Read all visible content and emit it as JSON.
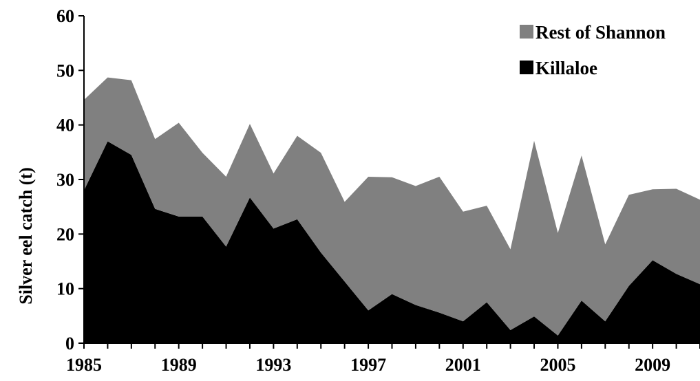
{
  "chart_data": {
    "type": "area",
    "stacked": true,
    "title": "",
    "xlabel": "",
    "ylabel": "Silver eel catch (t)",
    "x": [
      1985,
      1986,
      1987,
      1988,
      1989,
      1990,
      1991,
      1992,
      1993,
      1994,
      1995,
      1996,
      1997,
      1998,
      1999,
      2000,
      2001,
      2002,
      2003,
      2004,
      2005,
      2006,
      2007,
      2008,
      2009,
      2010,
      2011
    ],
    "x_tick_labels": [
      "1985",
      "1989",
      "1993",
      "1997",
      "2001",
      "2005",
      "2009"
    ],
    "y_tick_labels": [
      "0",
      "10",
      "20",
      "30",
      "40",
      "50",
      "60"
    ],
    "xlim": [
      1985,
      2011
    ],
    "ylim": [
      0,
      60
    ],
    "grid": false,
    "legend_position": "top-right",
    "series": [
      {
        "name": "Killaloe",
        "color": "#000000",
        "values": [
          28.0,
          37.0,
          34.5,
          24.6,
          23.2,
          23.2,
          17.7,
          26.7,
          21.0,
          22.7,
          16.6,
          11.3,
          6.0,
          9.0,
          7.0,
          5.6,
          4.0,
          7.5,
          2.4,
          4.9,
          1.4,
          7.8,
          4.0,
          10.5,
          15.2,
          12.7,
          10.8
        ]
      },
      {
        "name": "Rest of Shannon",
        "color": "#808080",
        "values": [
          16.6,
          11.7,
          13.7,
          12.8,
          17.2,
          11.7,
          12.8,
          13.5,
          10.1,
          15.3,
          18.3,
          14.6,
          24.5,
          21.4,
          21.8,
          24.9,
          20.1,
          17.7,
          14.8,
          32.2,
          18.8,
          26.6,
          14.1,
          16.7,
          13.0,
          15.6,
          15.5
        ]
      }
    ]
  }
}
